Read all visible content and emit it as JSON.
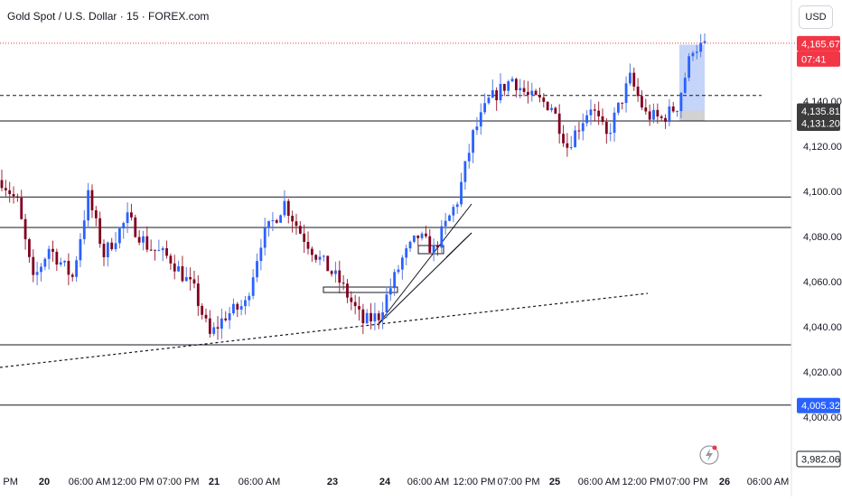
{
  "header": {
    "title": "Gold Spot / U.S. Dollar · 15 · FOREX.com",
    "currency": "USD"
  },
  "colors": {
    "up": "#2962ff",
    "down": "#800020",
    "wick_up": "#5b7bd9",
    "wick_down": "#9e2a3e",
    "current_price_line": "#f23645",
    "current_price_badge": "#f23645",
    "blue_badge": "#2962ff",
    "dark_badge": "#3c3c3c",
    "level_line": "#131722",
    "highlight_box": "#9db9f5"
  },
  "badges": {
    "current_price": "4,165.67",
    "countdown": "07:41",
    "dark_level_1": "4,135.81",
    "dark_level_2": "4,131.20",
    "blue_level": "4,005.32",
    "bottom_price": "3,982.06"
  },
  "chart_data": {
    "type": "candlestick",
    "symbol": "Gold Spot / U.S. Dollar",
    "interval": "15",
    "ylim": [
      3975,
      4180
    ],
    "y_ticks": [
      "4,000.00",
      "4,020.00",
      "4,040.00",
      "4,060.00",
      "4,080.00",
      "4,100.00",
      "4,120.00",
      "4,140.00"
    ],
    "y_tick_values": [
      4000,
      4020,
      4040,
      4060,
      4080,
      4100,
      4120,
      4140
    ],
    "x_ticks": [
      "00 PM",
      "20",
      "06:00 AM",
      "12:00 PM",
      "07:00 PM",
      "21",
      "06:00 AM",
      "23",
      "24",
      "06:00 AM",
      "12:00 PM",
      "07:00 PM",
      "25",
      "06:00 AM",
      "12:00 PM",
      "07:00 PM",
      "26",
      "06:00 AM"
    ],
    "bold_x_ticks": [
      "20",
      "21",
      "23",
      "24",
      "25",
      "26"
    ],
    "horizontal_levels": [
      {
        "value": 4165.67,
        "style": "dotted-red",
        "label": "current price"
      },
      {
        "value": 4142.5,
        "style": "dashed"
      },
      {
        "value": 4131.2,
        "style": "solid"
      },
      {
        "value": 4097.5,
        "style": "solid"
      },
      {
        "value": 4084.0,
        "style": "solid"
      },
      {
        "value": 4032.0,
        "style": "solid"
      },
      {
        "value": 4005.32,
        "style": "solid"
      }
    ],
    "price_path_anchors": [
      [
        0,
        4105
      ],
      [
        4,
        4095
      ],
      [
        8,
        4060
      ],
      [
        12,
        4075
      ],
      [
        18,
        4062
      ],
      [
        22,
        4098
      ],
      [
        26,
        4072
      ],
      [
        32,
        4088
      ],
      [
        37,
        4076
      ],
      [
        43,
        4070
      ],
      [
        49,
        4056
      ],
      [
        53,
        4036
      ],
      [
        57,
        4045
      ],
      [
        62,
        4050
      ],
      [
        66,
        4078
      ],
      [
        72,
        4095
      ],
      [
        76,
        4082
      ],
      [
        80,
        4072
      ],
      [
        86,
        4060
      ],
      [
        92,
        4042
      ],
      [
        96,
        4045
      ],
      [
        102,
        4070
      ],
      [
        106,
        4080
      ],
      [
        110,
        4074
      ],
      [
        116,
        4096
      ],
      [
        120,
        4125
      ],
      [
        124,
        4140
      ],
      [
        130,
        4150
      ],
      [
        134,
        4142
      ],
      [
        140,
        4138
      ],
      [
        144,
        4120
      ],
      [
        150,
        4138
      ],
      [
        154,
        4124
      ],
      [
        160,
        4150
      ],
      [
        164,
        4134
      ],
      [
        168,
        4132
      ],
      [
        172,
        4138
      ],
      [
        176,
        4164
      ]
    ]
  }
}
